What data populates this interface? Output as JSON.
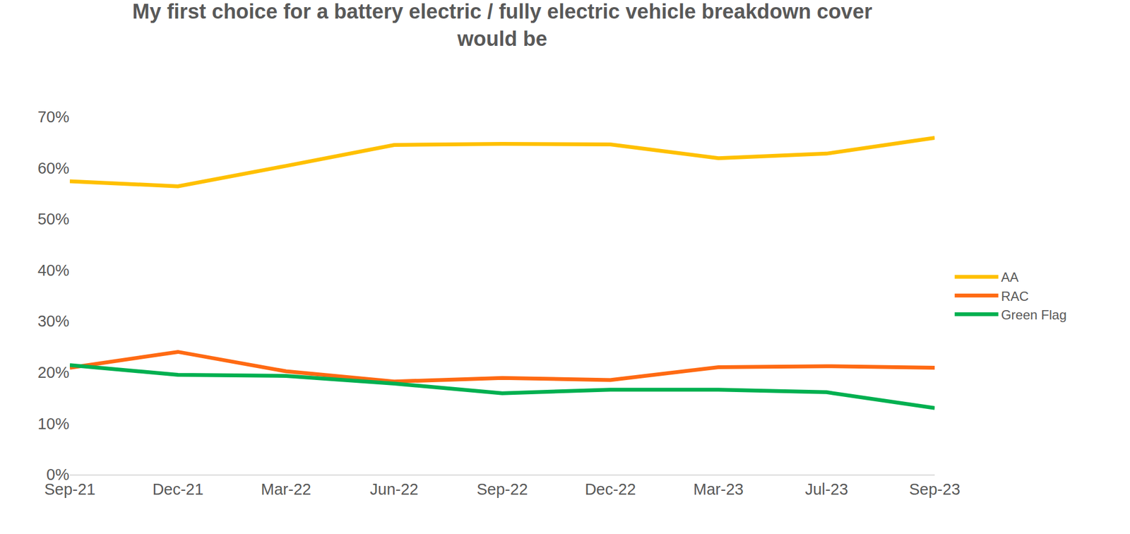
{
  "chart_data": {
    "type": "line",
    "title": "My first choice for a battery electric / fully electric vehicle breakdown cover would be",
    "categories": [
      "Sep-21",
      "Dec-21",
      "Mar-22",
      "Jun-22",
      "Sep-22",
      "Dec-22",
      "Mar-23",
      "Jul-23",
      "Sep-23"
    ],
    "series": [
      {
        "name": "AA",
        "color": "#FFC000",
        "values": [
          57.4,
          56.4,
          60.4,
          64.5,
          64.7,
          64.6,
          61.9,
          62.8,
          65.9
        ]
      },
      {
        "name": "RAC",
        "color": "#FF6A13",
        "values": [
          20.9,
          24.0,
          20.2,
          18.2,
          18.9,
          18.5,
          21.0,
          21.2,
          20.9
        ]
      },
      {
        "name": "Green Flag",
        "color": "#00B050",
        "values": [
          21.4,
          19.5,
          19.3,
          17.8,
          15.9,
          16.6,
          16.6,
          16.1,
          13.0
        ]
      }
    ],
    "ylim": [
      0,
      70
    ],
    "yticks": [
      {
        "value": 0,
        "label": "0%"
      },
      {
        "value": 10,
        "label": "10%"
      },
      {
        "value": 20,
        "label": "20%"
      },
      {
        "value": 30,
        "label": "30%"
      },
      {
        "value": 40,
        "label": "40%"
      },
      {
        "value": 50,
        "label": "50%"
      },
      {
        "value": 60,
        "label": "60%"
      },
      {
        "value": 70,
        "label": "70%"
      }
    ],
    "grid": false,
    "legend": "right"
  }
}
